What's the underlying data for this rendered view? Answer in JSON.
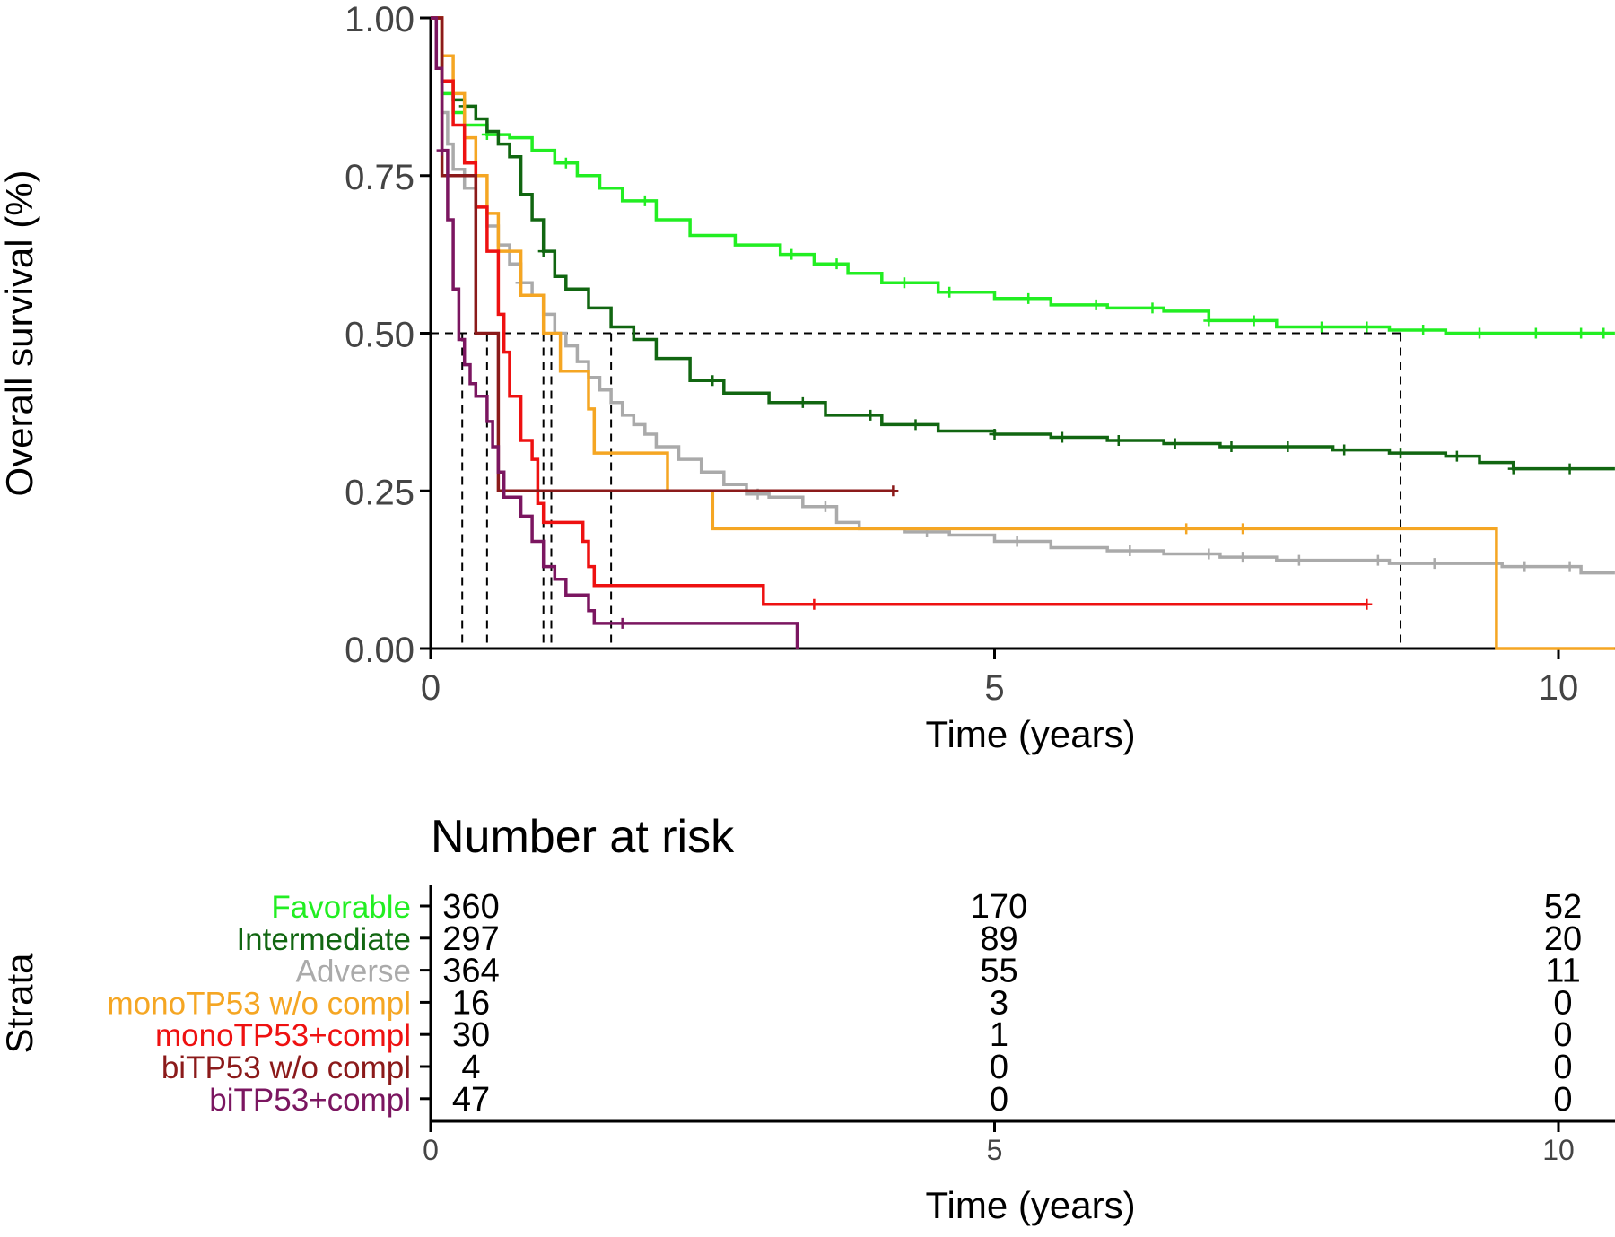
{
  "chart_data": {
    "type": "line",
    "subtype": "kaplan-meier",
    "ylabel": "Overall survival (%)",
    "xlabel": "Time (years)",
    "xlim": [
      0,
      10.5
    ],
    "ylim": [
      0,
      1
    ],
    "x_ticks": [
      "0",
      "5",
      "10"
    ],
    "y_ticks": [
      "0.00",
      "0.25",
      "0.50",
      "0.75",
      "1.00"
    ],
    "grid": false,
    "median_reference_line": 0.5,
    "series": [
      {
        "name": "Favorable",
        "color": "#22ee22",
        "points": [
          [
            0,
            1
          ],
          [
            0.1,
            0.88
          ],
          [
            0.2,
            0.85
          ],
          [
            0.3,
            0.83
          ],
          [
            0.5,
            0.815
          ],
          [
            0.7,
            0.81
          ],
          [
            0.9,
            0.79
          ],
          [
            1.1,
            0.77
          ],
          [
            1.3,
            0.75
          ],
          [
            1.5,
            0.73
          ],
          [
            1.7,
            0.71
          ],
          [
            2.0,
            0.68
          ],
          [
            2.3,
            0.655
          ],
          [
            2.7,
            0.64
          ],
          [
            3.1,
            0.625
          ],
          [
            3.4,
            0.61
          ],
          [
            3.7,
            0.595
          ],
          [
            4.0,
            0.58
          ],
          [
            4.5,
            0.565
          ],
          [
            5.0,
            0.555
          ],
          [
            5.5,
            0.545
          ],
          [
            6.0,
            0.54
          ],
          [
            6.5,
            0.535
          ],
          [
            6.9,
            0.52
          ],
          [
            7.5,
            0.51
          ],
          [
            8.0,
            0.51
          ],
          [
            8.5,
            0.505
          ],
          [
            9.0,
            0.5
          ],
          [
            9.5,
            0.5
          ],
          [
            10.0,
            0.5
          ],
          [
            10.5,
            0.5
          ]
        ],
        "censor_x": [
          0.5,
          1.2,
          1.9,
          3.2,
          3.6,
          4.2,
          4.6,
          5.3,
          5.9,
          6.4,
          6.9,
          7.3,
          7.9,
          8.3,
          8.8,
          9.3,
          9.8,
          10.2,
          10.4
        ]
      },
      {
        "name": "Intermediate",
        "color": "#116611",
        "points": [
          [
            0,
            1
          ],
          [
            0.1,
            0.9
          ],
          [
            0.2,
            0.87
          ],
          [
            0.3,
            0.86
          ],
          [
            0.4,
            0.84
          ],
          [
            0.5,
            0.82
          ],
          [
            0.6,
            0.8
          ],
          [
            0.7,
            0.78
          ],
          [
            0.8,
            0.72
          ],
          [
            0.9,
            0.68
          ],
          [
            1.0,
            0.63
          ],
          [
            1.1,
            0.59
          ],
          [
            1.2,
            0.57
          ],
          [
            1.4,
            0.54
          ],
          [
            1.6,
            0.51
          ],
          [
            1.8,
            0.49
          ],
          [
            2.0,
            0.46
          ],
          [
            2.3,
            0.425
          ],
          [
            2.6,
            0.405
          ],
          [
            3.0,
            0.39
          ],
          [
            3.5,
            0.37
          ],
          [
            4.0,
            0.355
          ],
          [
            4.5,
            0.345
          ],
          [
            5.0,
            0.34
          ],
          [
            5.5,
            0.335
          ],
          [
            6.0,
            0.33
          ],
          [
            6.5,
            0.325
          ],
          [
            7.0,
            0.32
          ],
          [
            7.5,
            0.32
          ],
          [
            8.0,
            0.315
          ],
          [
            8.5,
            0.31
          ],
          [
            9.0,
            0.305
          ],
          [
            9.3,
            0.295
          ],
          [
            9.6,
            0.285
          ],
          [
            10.0,
            0.285
          ],
          [
            10.5,
            0.285
          ]
        ],
        "censor_x": [
          0.3,
          1.0,
          2.5,
          3.3,
          3.9,
          4.3,
          5.0,
          5.6,
          6.1,
          6.6,
          7.1,
          7.6,
          8.1,
          8.6,
          9.1,
          9.6,
          10.1
        ]
      },
      {
        "name": "Adverse",
        "color": "#aaaaaa",
        "points": [
          [
            0,
            1
          ],
          [
            0.05,
            0.92
          ],
          [
            0.1,
            0.85
          ],
          [
            0.15,
            0.8
          ],
          [
            0.2,
            0.76
          ],
          [
            0.3,
            0.73
          ],
          [
            0.4,
            0.7
          ],
          [
            0.5,
            0.67
          ],
          [
            0.6,
            0.64
          ],
          [
            0.7,
            0.61
          ],
          [
            0.8,
            0.58
          ],
          [
            0.9,
            0.56
          ],
          [
            1.0,
            0.53
          ],
          [
            1.1,
            0.5
          ],
          [
            1.2,
            0.48
          ],
          [
            1.3,
            0.455
          ],
          [
            1.4,
            0.43
          ],
          [
            1.5,
            0.41
          ],
          [
            1.6,
            0.39
          ],
          [
            1.7,
            0.37
          ],
          [
            1.8,
            0.355
          ],
          [
            1.9,
            0.34
          ],
          [
            2.0,
            0.32
          ],
          [
            2.2,
            0.3
          ],
          [
            2.4,
            0.28
          ],
          [
            2.6,
            0.26
          ],
          [
            2.8,
            0.245
          ],
          [
            3.0,
            0.24
          ],
          [
            3.3,
            0.225
          ],
          [
            3.6,
            0.2
          ],
          [
            3.8,
            0.19
          ],
          [
            4.2,
            0.185
          ],
          [
            4.6,
            0.18
          ],
          [
            5.0,
            0.17
          ],
          [
            5.5,
            0.16
          ],
          [
            6.0,
            0.155
          ],
          [
            6.5,
            0.15
          ],
          [
            7.0,
            0.145
          ],
          [
            7.5,
            0.14
          ],
          [
            8.0,
            0.14
          ],
          [
            8.5,
            0.135
          ],
          [
            9.0,
            0.135
          ],
          [
            9.5,
            0.13
          ],
          [
            10.0,
            0.13
          ],
          [
            10.2,
            0.12
          ],
          [
            10.5,
            0.12
          ]
        ],
        "censor_x": [
          0.8,
          2.9,
          3.5,
          4.4,
          5.2,
          6.2,
          6.9,
          7.2,
          7.7,
          8.4,
          8.9,
          9.7,
          10.1
        ]
      },
      {
        "name": "monoTP53 w/o compl",
        "color": "#f5a623",
        "points": [
          [
            0,
            1
          ],
          [
            0.1,
            0.94
          ],
          [
            0.2,
            0.88
          ],
          [
            0.3,
            0.81
          ],
          [
            0.4,
            0.75
          ],
          [
            0.5,
            0.69
          ],
          [
            0.6,
            0.63
          ],
          [
            0.8,
            0.56
          ],
          [
            1.0,
            0.5
          ],
          [
            1.15,
            0.44
          ],
          [
            1.4,
            0.38
          ],
          [
            1.45,
            0.31
          ],
          [
            2.1,
            0.25
          ],
          [
            2.5,
            0.19
          ],
          [
            9.45,
            0
          ],
          [
            10.5,
            0
          ]
        ],
        "censor_x": [
          6.7,
          7.2
        ]
      },
      {
        "name": "monoTP53+compl",
        "color": "#ee1111",
        "points": [
          [
            0,
            1
          ],
          [
            0.1,
            0.9
          ],
          [
            0.2,
            0.83
          ],
          [
            0.3,
            0.77
          ],
          [
            0.4,
            0.7
          ],
          [
            0.5,
            0.63
          ],
          [
            0.6,
            0.53
          ],
          [
            0.65,
            0.47
          ],
          [
            0.7,
            0.4
          ],
          [
            0.8,
            0.33
          ],
          [
            0.9,
            0.3
          ],
          [
            0.95,
            0.23
          ],
          [
            1.0,
            0.2
          ],
          [
            1.35,
            0.17
          ],
          [
            1.4,
            0.13
          ],
          [
            1.45,
            0.1
          ],
          [
            2.95,
            0.07
          ],
          [
            8.3,
            0.07
          ]
        ],
        "censor_x": [
          3.4,
          8.3
        ]
      },
      {
        "name": "biTP53 w/o compl",
        "color": "#8b1a1a",
        "points": [
          [
            0,
            1
          ],
          [
            0.1,
            0.75
          ],
          [
            0.4,
            0.5
          ],
          [
            0.6,
            0.25
          ],
          [
            4.1,
            0.25
          ]
        ],
        "censor_x": [
          4.1
        ]
      },
      {
        "name": "biTP53+compl",
        "color": "#7b1660",
        "points": [
          [
            0,
            1
          ],
          [
            0.05,
            0.92
          ],
          [
            0.1,
            0.79
          ],
          [
            0.15,
            0.68
          ],
          [
            0.2,
            0.57
          ],
          [
            0.25,
            0.49
          ],
          [
            0.3,
            0.45
          ],
          [
            0.35,
            0.42
          ],
          [
            0.4,
            0.4
          ],
          [
            0.5,
            0.36
          ],
          [
            0.55,
            0.32
          ],
          [
            0.6,
            0.28
          ],
          [
            0.65,
            0.24
          ],
          [
            0.8,
            0.21
          ],
          [
            0.9,
            0.17
          ],
          [
            1.0,
            0.13
          ],
          [
            1.1,
            0.11
          ],
          [
            1.2,
            0.085
          ],
          [
            1.4,
            0.06
          ],
          [
            1.45,
            0.04
          ],
          [
            3.25,
            0
          ]
        ],
        "censor_x": [
          0.1,
          1.7
        ]
      }
    ],
    "median_drop_x": [
      0.28,
      0.5,
      1.0,
      1.07,
      1.6,
      8.6
    ],
    "risk_table": {
      "title": "Number at risk",
      "ylabel": "Strata",
      "xlabel": "Time (years)",
      "x_ticks": [
        "0",
        "5",
        "10"
      ],
      "rows": [
        {
          "label": "Favorable",
          "color": "#22ee22",
          "values": [
            "360",
            "170",
            "52"
          ]
        },
        {
          "label": "Intermediate",
          "color": "#116611",
          "values": [
            "297",
            "89",
            "20"
          ]
        },
        {
          "label": "Adverse",
          "color": "#aaaaaa",
          "values": [
            "364",
            "55",
            "11"
          ]
        },
        {
          "label": "monoTP53 w/o compl",
          "color": "#f5a623",
          "values": [
            "16",
            "3",
            "0"
          ]
        },
        {
          "label": "monoTP53+compl",
          "color": "#ee1111",
          "values": [
            "30",
            "1",
            "0"
          ]
        },
        {
          "label": "biTP53 w/o compl",
          "color": "#8b1a1a",
          "values": [
            "4",
            "0",
            "0"
          ]
        },
        {
          "label": "biTP53+compl",
          "color": "#7b1660",
          "values": [
            "47",
            "0",
            "0"
          ]
        }
      ]
    }
  }
}
